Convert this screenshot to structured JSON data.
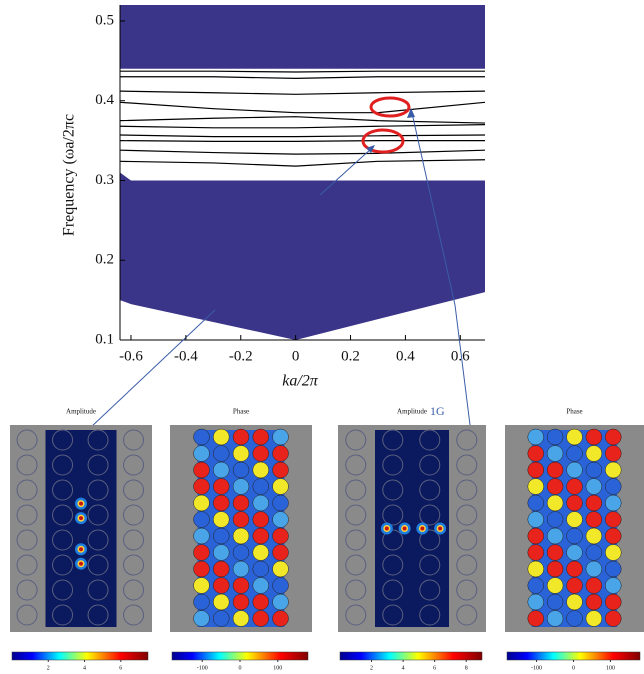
{
  "chart_data": {
    "type": "band",
    "ylabel": "Frequency (ωa/2πc",
    "xlabel": "ka/2π",
    "xlim": [
      -0.64,
      0.69
    ],
    "ylim": [
      0.1,
      0.52
    ],
    "xticks": [
      -0.6,
      -0.4,
      -0.2,
      0,
      0.2,
      0.4,
      0.6
    ],
    "yticks": [
      0.1,
      0.2,
      0.3,
      0.4,
      0.5
    ],
    "region_color": "#3b3589",
    "regions": [
      {
        "x": [
          -0.64,
          -0.6,
          0,
          0.69
        ],
        "lower": [
          0.15,
          0.145,
          0.1,
          0.16
        ],
        "upper": [
          0.31,
          0.3,
          0.3,
          0.3
        ]
      },
      {
        "x": [
          -0.64,
          0.69
        ],
        "lower": [
          0.44,
          0.44
        ],
        "upper": [
          0.52,
          0.52
        ]
      }
    ],
    "band_color": "#000000",
    "x": [
      -0.64,
      -0.3,
      0,
      0.3,
      0.69
    ],
    "bands": [
      {
        "values": [
          0.437,
          0.437,
          0.436,
          0.437,
          0.437
        ]
      },
      {
        "values": [
          0.43,
          0.43,
          0.428,
          0.43,
          0.43
        ]
      },
      {
        "values": [
          0.412,
          0.41,
          0.408,
          0.41,
          0.412
        ]
      },
      {
        "values": [
          0.398,
          0.39,
          0.385,
          0.385,
          0.398
        ]
      },
      {
        "values": [
          0.375,
          0.378,
          0.38,
          0.375,
          0.372
        ]
      },
      {
        "values": [
          0.368,
          0.366,
          0.366,
          0.368,
          0.37
        ]
      },
      {
        "values": [
          0.357,
          0.355,
          0.355,
          0.356,
          0.357
        ]
      },
      {
        "values": [
          0.35,
          0.349,
          0.349,
          0.35,
          0.35
        ]
      },
      {
        "values": [
          0.338,
          0.335,
          0.333,
          0.334,
          0.338
        ]
      },
      {
        "values": [
          0.324,
          0.322,
          0.318,
          0.324,
          0.326
        ]
      }
    ]
  },
  "annotation": "1G",
  "panels": [
    {
      "title": "Amplitude",
      "colorbar_lim": [
        0,
        7.5
      ],
      "colorbar_ticks": [
        2,
        4,
        6
      ]
    },
    {
      "title": "Phase",
      "colorbar_lim": [
        -180,
        180
      ],
      "colorbar_ticks": [
        -100,
        0,
        100
      ]
    },
    {
      "title": "Amplitude",
      "colorbar_lim": [
        0,
        9
      ],
      "colorbar_ticks": [
        2,
        4,
        6,
        8
      ]
    },
    {
      "title": "Phase",
      "colorbar_lim": [
        -180,
        180
      ],
      "colorbar_ticks": [
        -100,
        0,
        100
      ]
    }
  ]
}
